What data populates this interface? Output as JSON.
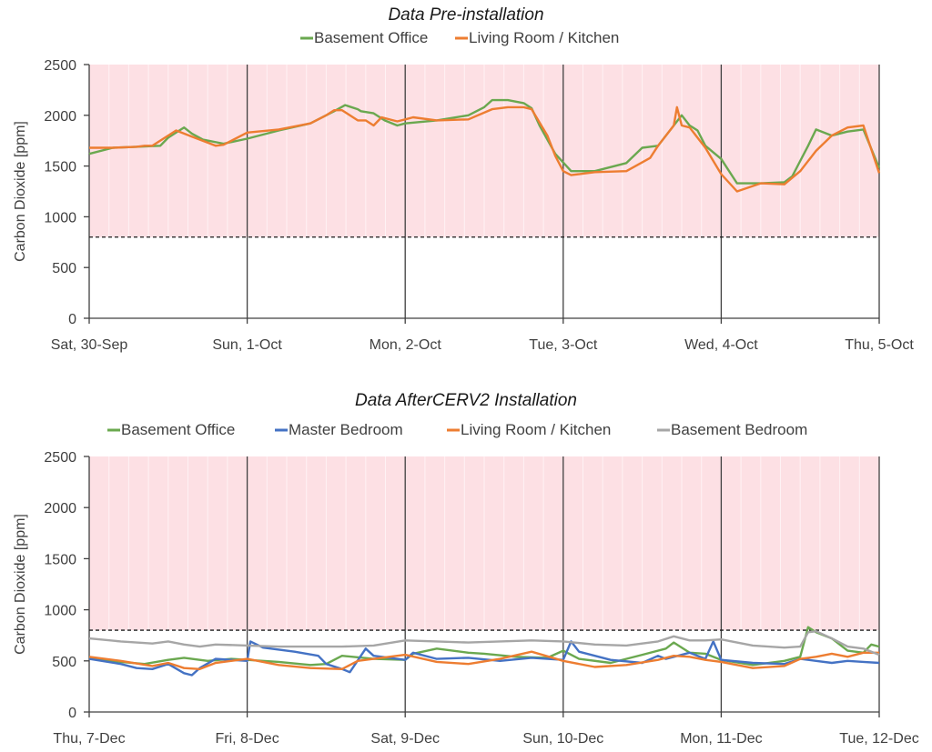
{
  "chart_data": [
    {
      "type": "line",
      "title": "Data Pre-installation",
      "ylabel": "Carbon Dioxide [ppm]",
      "xlabel": "",
      "ylim": [
        0,
        2500
      ],
      "yticks": [
        "0",
        "500",
        "1000",
        "1500",
        "2000",
        "2500"
      ],
      "xticks": [
        "Sat, 30-Sep",
        "Sun, 1-Oct",
        "Mon, 2-Oct",
        "Tue, 3-Oct",
        "Wed, 4-Oct",
        "Thu, 5-Oct"
      ],
      "xlim_days": [
        0,
        5
      ],
      "threshold": 800,
      "shade_above_threshold_color": "#fde0e4",
      "legend_position": "top",
      "series": [
        {
          "name": "Basement Office",
          "color": "#6aa84f",
          "x": [
            0,
            0.15,
            0.3,
            0.45,
            0.5,
            0.55,
            0.6,
            0.65,
            0.72,
            0.85,
            1.0,
            1.2,
            1.4,
            1.55,
            1.62,
            1.7,
            1.72,
            1.8,
            1.87,
            1.95,
            2.0,
            2.2,
            2.4,
            2.5,
            2.55,
            2.65,
            2.75,
            2.8,
            2.85,
            2.95,
            3.05,
            3.2,
            3.4,
            3.5,
            3.6,
            3.75,
            3.8,
            3.85,
            3.9,
            4.0,
            4.1,
            4.25,
            4.4,
            4.45,
            4.5,
            4.55,
            4.6,
            4.7,
            4.8,
            4.9,
            5.0
          ],
          "y": [
            1620,
            1680,
            1690,
            1700,
            1780,
            1830,
            1880,
            1820,
            1760,
            1720,
            1770,
            1850,
            1920,
            2040,
            2100,
            2060,
            2040,
            2020,
            1950,
            1900,
            1920,
            1950,
            2000,
            2080,
            2150,
            2150,
            2120,
            2070,
            1900,
            1620,
            1450,
            1450,
            1530,
            1680,
            1700,
            2000,
            1900,
            1850,
            1700,
            1570,
            1330,
            1330,
            1340,
            1400,
            1550,
            1700,
            1860,
            1800,
            1840,
            1860,
            1480
          ]
        },
        {
          "name": "Living Room / Kitchen",
          "color": "#ed7d31",
          "x": [
            0,
            0.15,
            0.3,
            0.35,
            0.4,
            0.55,
            0.6,
            0.65,
            0.75,
            0.8,
            0.85,
            1.0,
            1.2,
            1.4,
            1.5,
            1.55,
            1.6,
            1.7,
            1.75,
            1.8,
            1.85,
            1.95,
            2.0,
            2.05,
            2.2,
            2.4,
            2.55,
            2.65,
            2.75,
            2.8,
            2.9,
            2.95,
            3.0,
            3.05,
            3.2,
            3.4,
            3.55,
            3.6,
            3.7,
            3.72,
            3.75,
            3.8,
            3.9,
            4.0,
            4.1,
            4.25,
            4.4,
            4.5,
            4.6,
            4.7,
            4.8,
            4.9,
            5.0
          ],
          "y": [
            1680,
            1680,
            1690,
            1700,
            1700,
            1850,
            1820,
            1790,
            1730,
            1700,
            1710,
            1830,
            1860,
            1920,
            2000,
            2050,
            2050,
            1950,
            1950,
            1900,
            1980,
            1940,
            1960,
            1980,
            1950,
            1960,
            2060,
            2080,
            2080,
            2060,
            1800,
            1600,
            1450,
            1410,
            1440,
            1450,
            1580,
            1700,
            1900,
            2080,
            1900,
            1880,
            1680,
            1420,
            1250,
            1330,
            1320,
            1450,
            1650,
            1800,
            1880,
            1900,
            1430
          ]
        }
      ]
    },
    {
      "type": "line",
      "title": "Data AfterCERV2 Installation",
      "ylabel": "Carbon Dioxide [ppm]",
      "xlabel": "",
      "ylim": [
        0,
        2500
      ],
      "yticks": [
        "0",
        "500",
        "1000",
        "1500",
        "2000",
        "2500"
      ],
      "xticks": [
        "Thu, 7-Dec",
        "Fri, 8-Dec",
        "Sat, 9-Dec",
        "Sun, 10-Dec",
        "Mon, 11-Dec",
        "Tue, 12-Dec"
      ],
      "xlim_days": [
        0,
        5
      ],
      "threshold": 800,
      "shade_above_threshold_color": "#fde0e4",
      "legend_position": "top",
      "series": [
        {
          "name": "Basement Office",
          "color": "#6aa84f",
          "x": [
            0,
            0.2,
            0.35,
            0.5,
            0.6,
            0.75,
            0.9,
            1.0,
            1.2,
            1.4,
            1.5,
            1.6,
            1.8,
            2.0,
            2.05,
            2.2,
            2.4,
            2.5,
            2.7,
            2.9,
            3.0,
            3.1,
            3.3,
            3.5,
            3.65,
            3.7,
            3.8,
            3.9,
            4.0,
            4.2,
            4.4,
            4.5,
            4.55,
            4.6,
            4.7,
            4.8,
            4.9,
            4.95,
            5.0
          ],
          "y": [
            530,
            490,
            470,
            510,
            530,
            500,
            520,
            510,
            490,
            460,
            470,
            550,
            520,
            510,
            570,
            620,
            580,
            570,
            540,
            530,
            600,
            520,
            480,
            560,
            620,
            680,
            580,
            570,
            510,
            460,
            500,
            540,
            830,
            780,
            720,
            600,
            580,
            660,
            640
          ]
        },
        {
          "name": "Master Bedroom",
          "color": "#4472c4",
          "x": [
            0,
            0.2,
            0.3,
            0.4,
            0.5,
            0.6,
            0.65,
            0.7,
            0.8,
            1.0,
            1.02,
            1.1,
            1.3,
            1.45,
            1.5,
            1.6,
            1.65,
            1.75,
            1.8,
            2.0,
            2.05,
            2.2,
            2.4,
            2.6,
            2.8,
            3.0,
            3.05,
            3.1,
            3.3,
            3.5,
            3.6,
            3.65,
            3.8,
            3.9,
            3.95,
            4.0,
            4.2,
            4.4,
            4.5,
            4.6,
            4.7,
            4.8,
            4.9,
            5.0
          ],
          "y": [
            520,
            470,
            430,
            420,
            470,
            380,
            360,
            430,
            520,
            500,
            690,
            630,
            590,
            550,
            470,
            420,
            390,
            620,
            550,
            510,
            580,
            520,
            530,
            500,
            530,
            510,
            690,
            590,
            510,
            480,
            550,
            520,
            580,
            520,
            690,
            510,
            480,
            470,
            520,
            500,
            480,
            500,
            490,
            480
          ]
        },
        {
          "name": "Living Room / Kitchen",
          "color": "#ed7d31",
          "x": [
            0,
            0.2,
            0.4,
            0.5,
            0.6,
            0.7,
            0.8,
            1.0,
            1.2,
            1.4,
            1.6,
            1.7,
            1.9,
            2.0,
            2.2,
            2.4,
            2.6,
            2.8,
            3.0,
            3.2,
            3.4,
            3.6,
            3.7,
            3.8,
            3.9,
            4.0,
            4.2,
            4.4,
            4.5,
            4.6,
            4.7,
            4.8,
            4.9,
            5.0
          ],
          "y": [
            540,
            500,
            450,
            480,
            430,
            420,
            480,
            520,
            460,
            430,
            420,
            500,
            540,
            560,
            490,
            470,
            520,
            590,
            500,
            440,
            460,
            510,
            550,
            540,
            510,
            490,
            430,
            450,
            520,
            540,
            570,
            540,
            580,
            580
          ]
        },
        {
          "name": "Basement Bedroom",
          "color": "#a6a6a6",
          "x": [
            0,
            0.2,
            0.4,
            0.5,
            0.6,
            0.7,
            0.8,
            1.0,
            1.2,
            1.4,
            1.6,
            1.8,
            2.0,
            2.2,
            2.4,
            2.6,
            2.8,
            3.0,
            3.2,
            3.4,
            3.6,
            3.7,
            3.8,
            3.9,
            4.0,
            4.2,
            4.4,
            4.5,
            4.55,
            4.6,
            4.7,
            4.8,
            4.9,
            5.0
          ],
          "y": [
            720,
            690,
            670,
            690,
            660,
            640,
            660,
            650,
            640,
            640,
            640,
            650,
            700,
            690,
            680,
            690,
            700,
            690,
            660,
            650,
            690,
            740,
            700,
            700,
            710,
            650,
            630,
            640,
            780,
            790,
            720,
            640,
            620,
            560
          ]
        }
      ]
    }
  ]
}
